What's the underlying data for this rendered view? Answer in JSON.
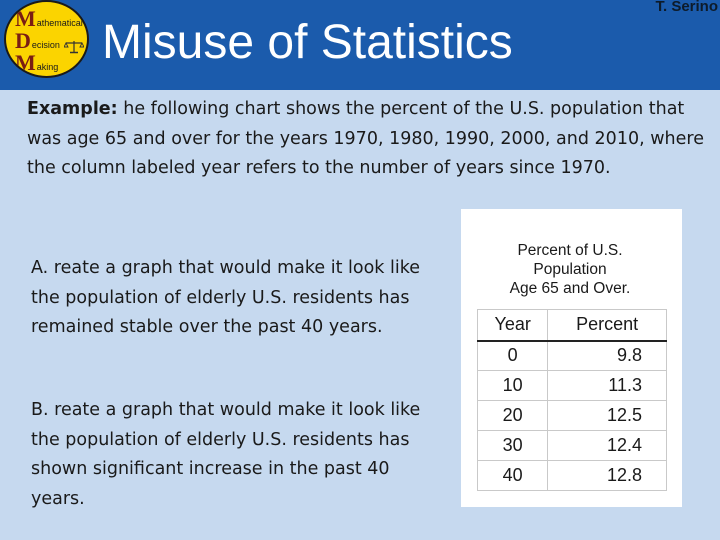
{
  "header": {
    "title": "Misuse of Statistics",
    "author": "T. Serino",
    "logo": {
      "rows": [
        {
          "letter": "M",
          "rest": "athematical"
        },
        {
          "letter": "D",
          "rest": "ecision"
        },
        {
          "letter": "M",
          "rest": "aking"
        }
      ],
      "icon": "balance-scale-icon"
    },
    "bar_color": "#1b5bac"
  },
  "intro": {
    "label": "Example:",
    "text": " he following chart shows the percent of the U.S. population that was age 65 and over for the years 1970, 1980, 1990, 2000, and 2010, where the column labeled year refers to the number of years since 1970."
  },
  "parts": {
    "a": "A. reate a graph that would make it look like the population of elderly U.S. residents has remained stable over the past 40 years.",
    "b": "B. reate a graph that would make it look like the population of elderly U.S. residents has shown significant increase in the past 40 years."
  },
  "table": {
    "title_lines": [
      "Percent of U.S.",
      "Population",
      "Age 65 and Over."
    ],
    "headers": [
      "Year",
      "Percent"
    ],
    "rows": [
      {
        "year": "0",
        "percent": "9.8"
      },
      {
        "year": "10",
        "percent": "11.3"
      },
      {
        "year": "20",
        "percent": "12.5"
      },
      {
        "year": "30",
        "percent": "12.4"
      },
      {
        "year": "40",
        "percent": "12.8"
      }
    ]
  }
}
